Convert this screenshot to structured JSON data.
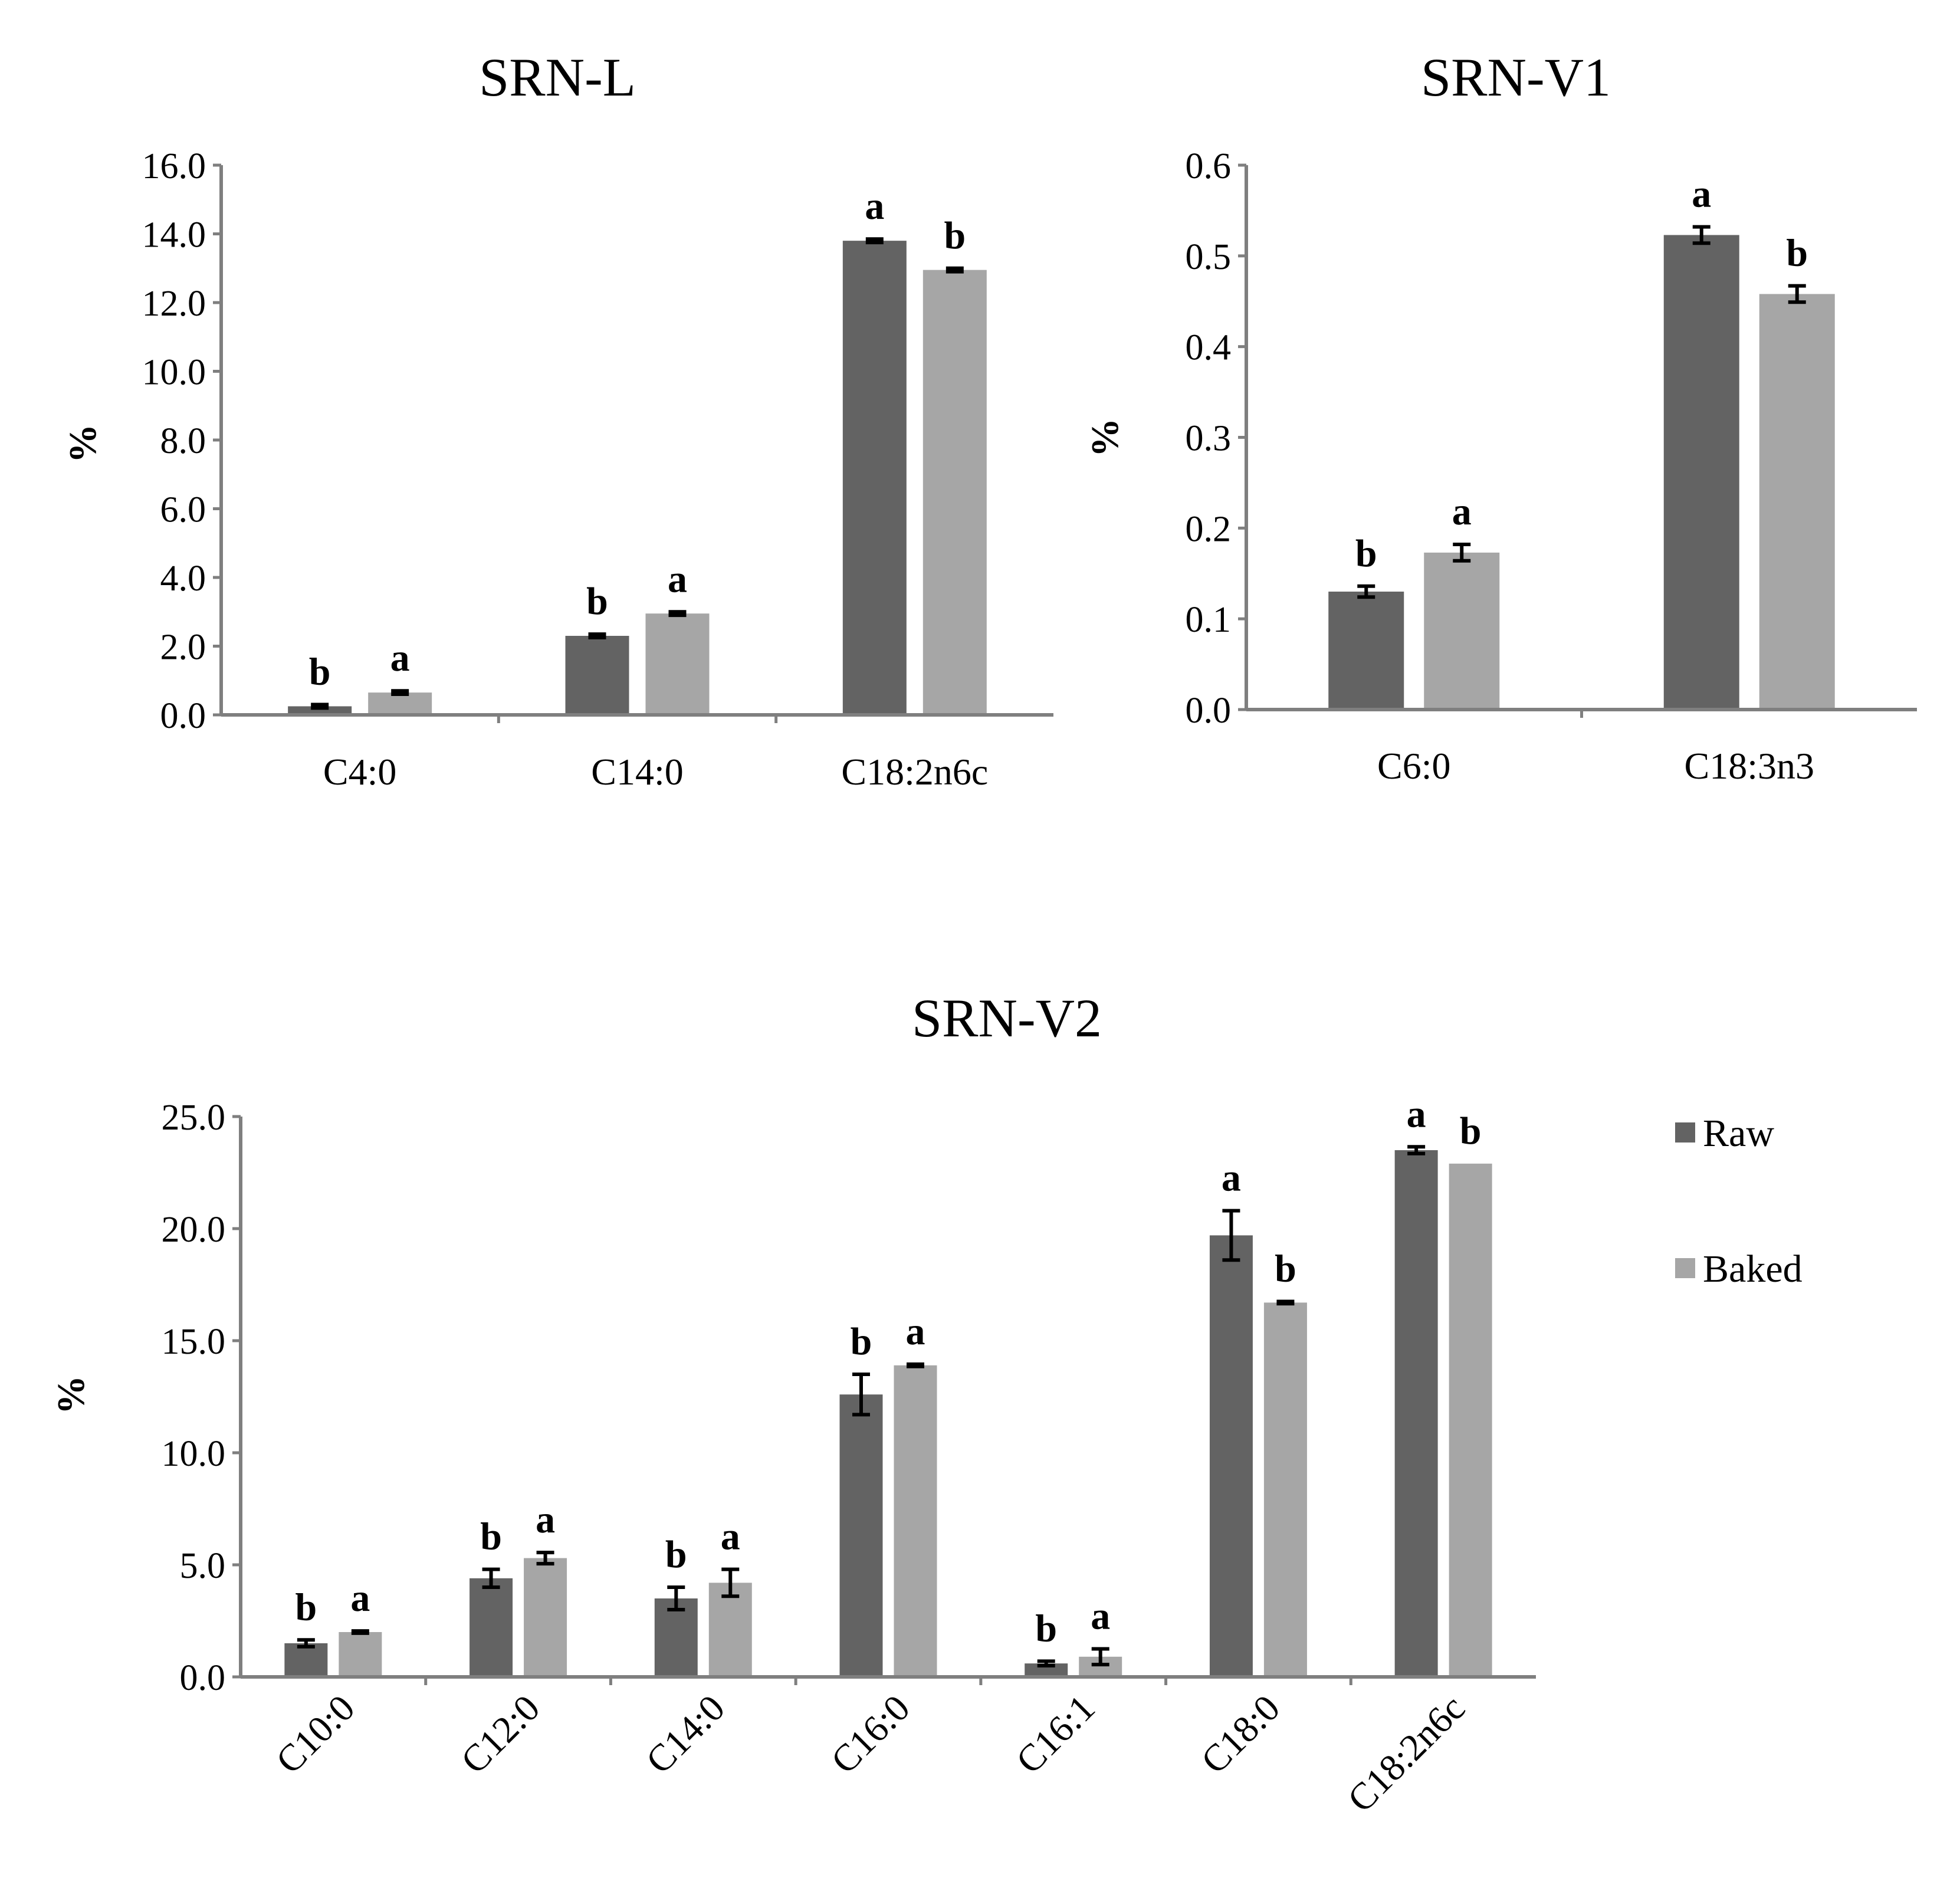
{
  "chart_data": [
    {
      "type": "bar",
      "title": "SRN-L",
      "ylabel": "%",
      "xlabel": "",
      "ylim": [
        0,
        16
      ],
      "yticks": [
        "0.0",
        "2.0",
        "4.0",
        "6.0",
        "8.0",
        "10.0",
        "12.0",
        "14.0",
        "16.0"
      ],
      "categories": [
        "C4:0",
        "C14:0",
        "C18:2n6c"
      ],
      "series": [
        {
          "name": "Raw",
          "color": "#636363",
          "values": [
            0.25,
            2.3,
            13.8
          ],
          "errors": [
            0.05,
            0.05,
            0.05
          ],
          "labels": [
            "b",
            "b",
            "a"
          ]
        },
        {
          "name": "Baked",
          "color": "#a6a6a6",
          "values": [
            0.65,
            2.95,
            12.95
          ],
          "errors": [
            0.05,
            0.05,
            0.05
          ],
          "labels": [
            "a",
            "a",
            "b"
          ]
        }
      ]
    },
    {
      "type": "bar",
      "title": "SRN-V1",
      "ylabel": "%",
      "xlabel": "",
      "ylim": [
        0,
        0.6
      ],
      "yticks": [
        "0.0",
        "0.1",
        "0.2",
        "0.3",
        "0.4",
        "0.5",
        "0.6"
      ],
      "categories": [
        "C6:0",
        "C18:3n3"
      ],
      "series": [
        {
          "name": "Raw",
          "color": "#636363",
          "values": [
            0.13,
            0.523
          ],
          "errors": [
            0.006,
            0.009
          ],
          "labels": [
            "b",
            "a"
          ]
        },
        {
          "name": "Baked",
          "color": "#a6a6a6",
          "values": [
            0.173,
            0.458
          ],
          "errors": [
            0.009,
            0.009
          ],
          "labels": [
            "a",
            "b"
          ]
        }
      ]
    },
    {
      "type": "bar",
      "title": "SRN-V2",
      "ylabel": "%",
      "xlabel": "",
      "ylim": [
        0,
        25
      ],
      "yticks": [
        "0.0",
        "5.0",
        "10.0",
        "15.0",
        "20.0",
        "25.0"
      ],
      "categories": [
        "C10:0",
        "C12:0",
        "C14:0",
        "C16:0",
        "C16:1",
        "C18:0",
        "C18:2n6c"
      ],
      "series": [
        {
          "name": "Raw",
          "color": "#636363",
          "values": [
            1.5,
            4.4,
            3.5,
            12.6,
            0.6,
            19.7,
            23.5
          ],
          "errors": [
            0.15,
            0.4,
            0.5,
            0.9,
            0.1,
            1.1,
            0.15
          ],
          "labels": [
            "b",
            "b",
            "b",
            "b",
            "b",
            "a",
            "a"
          ]
        },
        {
          "name": "Baked",
          "color": "#a6a6a6",
          "values": [
            2.0,
            5.3,
            4.2,
            13.9,
            0.9,
            16.7,
            22.9
          ],
          "errors": [
            0.05,
            0.25,
            0.6,
            0.05,
            0.35,
            0.05,
            0.0
          ],
          "labels": [
            "a",
            "a",
            "a",
            "a",
            "a",
            "b",
            "b"
          ]
        }
      ],
      "legend": {
        "position": "right",
        "entries": [
          "Raw",
          "Baked"
        ]
      }
    }
  ]
}
